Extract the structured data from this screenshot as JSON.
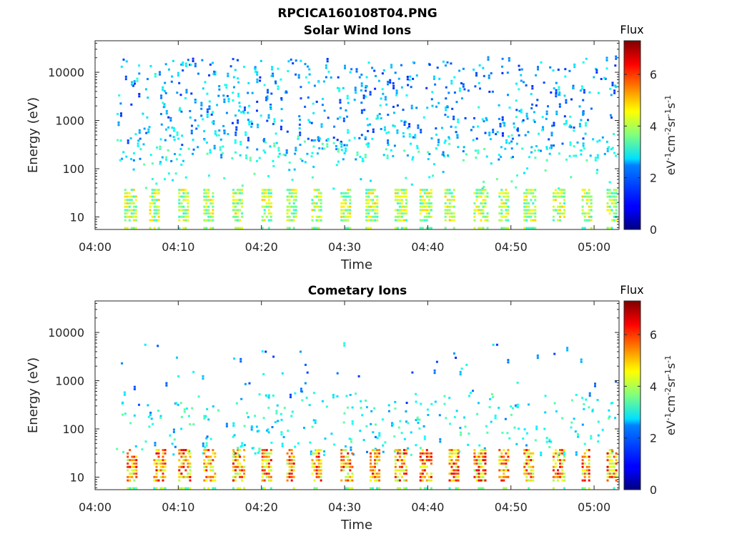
{
  "figure": {
    "title": "RPCICA160108T04.PNG"
  },
  "chart_data": [
    {
      "type": "heatmap",
      "title": "Solar Wind Ions",
      "xlabel": "Time",
      "ylabel": "Energy (eV)",
      "x_ticks": [
        "04:00",
        "04:10",
        "04:20",
        "04:30",
        "04:40",
        "04:50",
        "05:00"
      ],
      "y_ticks": [
        "10",
        "100",
        "1000",
        "10000"
      ],
      "y_scale": "log",
      "ylim": [
        5.5,
        45000
      ],
      "xlim_minutes": [
        0,
        63
      ],
      "colorbar": {
        "title": "Flux",
        "label": "eV-1cm-2sr-1s-1",
        "ticks": [
          "0",
          "2",
          "4",
          "6"
        ],
        "range": [
          0,
          7.3
        ],
        "colormap": "jet"
      },
      "low_energy_bursts_minutes": [
        3.5,
        6.5,
        10,
        13,
        16.5,
        20,
        23,
        26,
        29.5,
        32.5,
        36,
        39,
        42,
        45.5,
        48.5,
        51.5,
        55,
        58.5,
        61.5
      ],
      "activity_ends_minute": 62.5,
      "activity_starts_minute": 2.5
    },
    {
      "type": "heatmap",
      "title": "Cometary Ions",
      "xlabel": "Time",
      "ylabel": "Energy (eV)",
      "x_ticks": [
        "04:00",
        "04:10",
        "04:20",
        "04:30",
        "04:40",
        "04:50",
        "05:00"
      ],
      "y_ticks": [
        "10",
        "100",
        "1000",
        "10000"
      ],
      "y_scale": "log",
      "ylim": [
        5.5,
        45000
      ],
      "xlim_minutes": [
        0,
        63
      ],
      "colorbar": {
        "title": "Flux",
        "label": "eV-1cm-2sr-1s-1",
        "ticks": [
          "0",
          "2",
          "4",
          "6"
        ],
        "range": [
          0,
          7.3
        ],
        "colormap": "jet"
      },
      "low_energy_bursts_minutes": [
        3.8,
        7,
        10,
        13,
        16.5,
        20,
        23,
        26,
        29.5,
        33,
        36,
        39,
        42.5,
        45.5,
        48.5,
        51.5,
        55,
        58.5,
        61.5
      ],
      "activity_ends_minute": 62.5,
      "activity_starts_minute": 2.5
    }
  ]
}
